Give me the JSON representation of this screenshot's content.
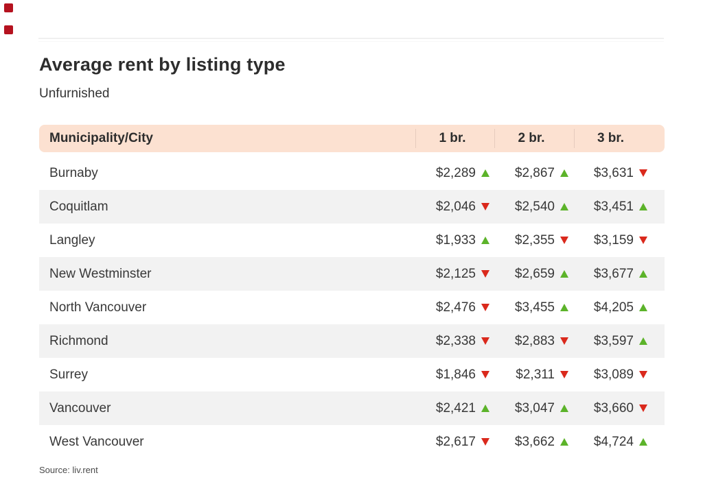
{
  "page": {
    "title": "Average rent by listing type",
    "subtitle": "Unfurnished",
    "source": "Source: liv.rent"
  },
  "colors": {
    "brand": "#b5121f",
    "header_bg": "#fce1d1",
    "stripe": "#f2f2f2",
    "up": "#5cb32a",
    "down": "#da291c"
  },
  "table": {
    "header": {
      "city_label": "Municipality/City",
      "columns": [
        "1 br.",
        "2 br.",
        "3 br."
      ]
    },
    "rows": [
      {
        "city": "Burnaby",
        "values": [
          {
            "amount": "$2,289",
            "trend": "up"
          },
          {
            "amount": "$2,867",
            "trend": "up"
          },
          {
            "amount": "$3,631",
            "trend": "down"
          }
        ]
      },
      {
        "city": "Coquitlam",
        "values": [
          {
            "amount": "$2,046",
            "trend": "down"
          },
          {
            "amount": "$2,540",
            "trend": "up"
          },
          {
            "amount": "$3,451",
            "trend": "up"
          }
        ]
      },
      {
        "city": "Langley",
        "values": [
          {
            "amount": "$1,933",
            "trend": "up"
          },
          {
            "amount": "$2,355",
            "trend": "down"
          },
          {
            "amount": "$3,159",
            "trend": "down"
          }
        ]
      },
      {
        "city": "New Westminster",
        "values": [
          {
            "amount": "$2,125",
            "trend": "down"
          },
          {
            "amount": "$2,659",
            "trend": "up"
          },
          {
            "amount": "$3,677",
            "trend": "up"
          }
        ]
      },
      {
        "city": "North Vancouver",
        "values": [
          {
            "amount": "$2,476",
            "trend": "down"
          },
          {
            "amount": "$3,455",
            "trend": "up"
          },
          {
            "amount": "$4,205",
            "trend": "up"
          }
        ]
      },
      {
        "city": "Richmond",
        "values": [
          {
            "amount": "$2,338",
            "trend": "down"
          },
          {
            "amount": "$2,883",
            "trend": "down"
          },
          {
            "amount": "$3,597",
            "trend": "up"
          }
        ]
      },
      {
        "city": "Surrey",
        "values": [
          {
            "amount": "$1,846",
            "trend": "down"
          },
          {
            "amount": "$2,311",
            "trend": "down"
          },
          {
            "amount": "$3,089",
            "trend": "down"
          }
        ]
      },
      {
        "city": "Vancouver",
        "values": [
          {
            "amount": "$2,421",
            "trend": "up"
          },
          {
            "amount": "$3,047",
            "trend": "up"
          },
          {
            "amount": "$3,660",
            "trend": "down"
          }
        ]
      },
      {
        "city": "West Vancouver",
        "values": [
          {
            "amount": "$2,617",
            "trend": "down"
          },
          {
            "amount": "$3,662",
            "trend": "up"
          },
          {
            "amount": "$4,724",
            "trend": "up"
          }
        ]
      }
    ]
  },
  "chart_data": {
    "type": "table",
    "title": "Average rent by listing type",
    "subtitle": "Unfurnished",
    "categories": [
      "Burnaby",
      "Coquitlam",
      "Langley",
      "New Westminster",
      "North Vancouver",
      "Richmond",
      "Surrey",
      "Vancouver",
      "West Vancouver"
    ],
    "series": [
      {
        "name": "1 br.",
        "values": [
          2289,
          2046,
          1933,
          2125,
          2476,
          2338,
          1846,
          2421,
          2617
        ],
        "trends": [
          "up",
          "down",
          "up",
          "down",
          "down",
          "down",
          "down",
          "up",
          "down"
        ]
      },
      {
        "name": "2 br.",
        "values": [
          2867,
          2540,
          2355,
          2659,
          3455,
          2883,
          2311,
          3047,
          3662
        ],
        "trends": [
          "up",
          "up",
          "down",
          "up",
          "up",
          "down",
          "down",
          "up",
          "up"
        ]
      },
      {
        "name": "3 br.",
        "values": [
          3631,
          3451,
          3159,
          3677,
          4205,
          3597,
          3089,
          3660,
          4724
        ],
        "trends": [
          "down",
          "up",
          "down",
          "up",
          "up",
          "up",
          "down",
          "down",
          "up"
        ]
      }
    ],
    "source": "Source: liv.rent"
  }
}
